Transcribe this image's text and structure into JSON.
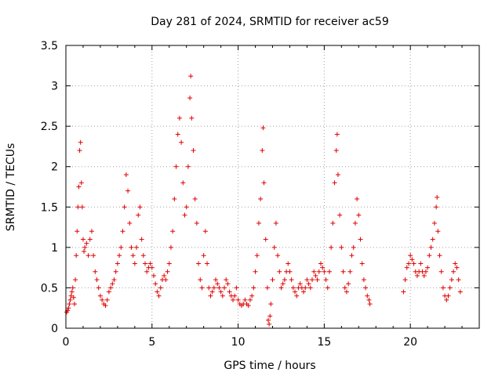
{
  "chart_data": {
    "type": "scatter",
    "title": "Day 281 of 2024, SRMTID for receiver ac59",
    "xlabel": "GPS time / hours",
    "ylabel": "SRMTID / TECUs",
    "xlim": [
      0,
      24
    ],
    "ylim": [
      0,
      3.5
    ],
    "x_ticks": [
      0,
      5,
      10,
      15,
      20
    ],
    "y_ticks": [
      0,
      0.5,
      1,
      1.5,
      2,
      2.5,
      3,
      3.5
    ],
    "x_tick_labels": [
      "0",
      "5",
      "10",
      "15",
      "20"
    ],
    "y_tick_labels": [
      "0",
      "0.5",
      "1",
      "1.5",
      "2",
      "2.5",
      "3",
      "3.5"
    ],
    "grid": true,
    "marker": "+",
    "series": [
      {
        "name": "SRMTID",
        "color": "#e00000",
        "points": [
          [
            0.05,
            0.2
          ],
          [
            0.1,
            0.22
          ],
          [
            0.15,
            0.25
          ],
          [
            0.2,
            0.3
          ],
          [
            0.25,
            0.35
          ],
          [
            0.3,
            0.4
          ],
          [
            0.35,
            0.45
          ],
          [
            0.4,
            0.5
          ],
          [
            0.45,
            0.38
          ],
          [
            0.5,
            0.3
          ],
          [
            0.55,
            0.6
          ],
          [
            0.6,
            0.9
          ],
          [
            0.65,
            1.2
          ],
          [
            0.7,
            1.5
          ],
          [
            0.75,
            1.75
          ],
          [
            0.8,
            2.2
          ],
          [
            0.85,
            2.3
          ],
          [
            0.9,
            1.8
          ],
          [
            0.95,
            1.5
          ],
          [
            1.0,
            1.1
          ],
          [
            1.05,
            0.95
          ],
          [
            1.1,
            1.0
          ],
          [
            1.2,
            1.05
          ],
          [
            1.3,
            0.9
          ],
          [
            1.4,
            1.1
          ],
          [
            1.5,
            1.2
          ],
          [
            1.6,
            0.9
          ],
          [
            1.7,
            0.7
          ],
          [
            1.8,
            0.6
          ],
          [
            1.9,
            0.5
          ],
          [
            2.0,
            0.4
          ],
          [
            2.1,
            0.35
          ],
          [
            2.2,
            0.3
          ],
          [
            2.3,
            0.28
          ],
          [
            2.4,
            0.35
          ],
          [
            2.5,
            0.45
          ],
          [
            2.6,
            0.5
          ],
          [
            2.7,
            0.55
          ],
          [
            2.8,
            0.6
          ],
          [
            2.9,
            0.7
          ],
          [
            3.0,
            0.8
          ],
          [
            3.1,
            0.9
          ],
          [
            3.2,
            1.0
          ],
          [
            3.3,
            1.2
          ],
          [
            3.4,
            1.5
          ],
          [
            3.5,
            1.9
          ],
          [
            3.6,
            1.7
          ],
          [
            3.7,
            1.3
          ],
          [
            3.8,
            1.0
          ],
          [
            3.9,
            0.9
          ],
          [
            4.0,
            0.8
          ],
          [
            4.1,
            1.0
          ],
          [
            4.2,
            1.4
          ],
          [
            4.3,
            1.5
          ],
          [
            4.4,
            1.1
          ],
          [
            4.5,
            0.9
          ],
          [
            4.6,
            0.8
          ],
          [
            4.7,
            0.7
          ],
          [
            4.8,
            0.75
          ],
          [
            4.9,
            0.8
          ],
          [
            5.0,
            0.75
          ],
          [
            5.1,
            0.65
          ],
          [
            5.2,
            0.55
          ],
          [
            5.3,
            0.45
          ],
          [
            5.4,
            0.4
          ],
          [
            5.5,
            0.5
          ],
          [
            5.6,
            0.6
          ],
          [
            5.7,
            0.65
          ],
          [
            5.8,
            0.6
          ],
          [
            5.9,
            0.7
          ],
          [
            6.0,
            0.8
          ],
          [
            6.1,
            1.0
          ],
          [
            6.2,
            1.2
          ],
          [
            6.3,
            1.6
          ],
          [
            6.4,
            2.0
          ],
          [
            6.5,
            2.4
          ],
          [
            6.6,
            2.6
          ],
          [
            6.7,
            2.3
          ],
          [
            6.8,
            1.8
          ],
          [
            6.9,
            1.4
          ],
          [
            7.0,
            1.5
          ],
          [
            7.1,
            2.0
          ],
          [
            7.2,
            2.85
          ],
          [
            7.25,
            3.12
          ],
          [
            7.3,
            2.6
          ],
          [
            7.4,
            2.2
          ],
          [
            7.5,
            1.6
          ],
          [
            7.6,
            1.3
          ],
          [
            7.7,
            0.8
          ],
          [
            7.8,
            0.6
          ],
          [
            7.9,
            0.5
          ],
          [
            8.0,
            0.9
          ],
          [
            8.1,
            1.2
          ],
          [
            8.2,
            0.8
          ],
          [
            8.3,
            0.5
          ],
          [
            8.4,
            0.4
          ],
          [
            8.5,
            0.45
          ],
          [
            8.6,
            0.5
          ],
          [
            8.7,
            0.6
          ],
          [
            8.8,
            0.55
          ],
          [
            8.9,
            0.5
          ],
          [
            9.0,
            0.45
          ],
          [
            9.1,
            0.4
          ],
          [
            9.2,
            0.5
          ],
          [
            9.3,
            0.6
          ],
          [
            9.4,
            0.55
          ],
          [
            9.5,
            0.45
          ],
          [
            9.6,
            0.4
          ],
          [
            9.7,
            0.35
          ],
          [
            9.8,
            0.4
          ],
          [
            9.9,
            0.5
          ],
          [
            10.0,
            0.35
          ],
          [
            10.1,
            0.3
          ],
          [
            10.2,
            0.28
          ],
          [
            10.3,
            0.3
          ],
          [
            10.4,
            0.35
          ],
          [
            10.5,
            0.3
          ],
          [
            10.6,
            0.28
          ],
          [
            10.7,
            0.35
          ],
          [
            10.8,
            0.4
          ],
          [
            10.9,
            0.5
          ],
          [
            11.0,
            0.7
          ],
          [
            11.1,
            0.9
          ],
          [
            11.2,
            1.3
          ],
          [
            11.3,
            1.6
          ],
          [
            11.4,
            2.2
          ],
          [
            11.45,
            2.48
          ],
          [
            11.5,
            1.8
          ],
          [
            11.6,
            1.1
          ],
          [
            11.7,
            0.5
          ],
          [
            11.75,
            0.1
          ],
          [
            11.8,
            0.05
          ],
          [
            11.85,
            0.15
          ],
          [
            11.9,
            0.3
          ],
          [
            12.0,
            0.6
          ],
          [
            12.1,
            1.0
          ],
          [
            12.2,
            1.3
          ],
          [
            12.3,
            0.9
          ],
          [
            12.4,
            0.7
          ],
          [
            12.5,
            0.5
          ],
          [
            12.6,
            0.55
          ],
          [
            12.7,
            0.6
          ],
          [
            12.8,
            0.7
          ],
          [
            12.9,
            0.8
          ],
          [
            13.0,
            0.7
          ],
          [
            13.1,
            0.6
          ],
          [
            13.2,
            0.5
          ],
          [
            13.3,
            0.45
          ],
          [
            13.4,
            0.4
          ],
          [
            13.5,
            0.5
          ],
          [
            13.6,
            0.55
          ],
          [
            13.7,
            0.5
          ],
          [
            13.8,
            0.45
          ],
          [
            13.9,
            0.5
          ],
          [
            14.0,
            0.6
          ],
          [
            14.1,
            0.55
          ],
          [
            14.2,
            0.5
          ],
          [
            14.3,
            0.6
          ],
          [
            14.4,
            0.7
          ],
          [
            14.5,
            0.65
          ],
          [
            14.6,
            0.6
          ],
          [
            14.7,
            0.7
          ],
          [
            14.8,
            0.8
          ],
          [
            14.9,
            0.75
          ],
          [
            15.0,
            0.7
          ],
          [
            15.1,
            0.6
          ],
          [
            15.2,
            0.5
          ],
          [
            15.3,
            0.7
          ],
          [
            15.4,
            1.0
          ],
          [
            15.5,
            1.3
          ],
          [
            15.6,
            1.8
          ],
          [
            15.7,
            2.2
          ],
          [
            15.75,
            2.4
          ],
          [
            15.8,
            1.9
          ],
          [
            15.9,
            1.4
          ],
          [
            16.0,
            1.0
          ],
          [
            16.1,
            0.7
          ],
          [
            16.2,
            0.5
          ],
          [
            16.3,
            0.45
          ],
          [
            16.4,
            0.55
          ],
          [
            16.5,
            0.7
          ],
          [
            16.6,
            0.9
          ],
          [
            16.7,
            1.0
          ],
          [
            16.8,
            1.3
          ],
          [
            16.9,
            1.6
          ],
          [
            17.0,
            1.4
          ],
          [
            17.1,
            1.1
          ],
          [
            17.2,
            0.8
          ],
          [
            17.3,
            0.6
          ],
          [
            17.4,
            0.5
          ],
          [
            17.5,
            0.4
          ],
          [
            17.6,
            0.35
          ],
          [
            17.65,
            0.3
          ],
          [
            19.6,
            0.45
          ],
          [
            19.7,
            0.6
          ],
          [
            19.8,
            0.75
          ],
          [
            19.9,
            0.8
          ],
          [
            20.0,
            0.9
          ],
          [
            20.1,
            0.85
          ],
          [
            20.2,
            0.8
          ],
          [
            20.3,
            0.7
          ],
          [
            20.4,
            0.65
          ],
          [
            20.5,
            0.7
          ],
          [
            20.6,
            0.8
          ],
          [
            20.7,
            0.7
          ],
          [
            20.8,
            0.65
          ],
          [
            20.9,
            0.7
          ],
          [
            21.0,
            0.75
          ],
          [
            21.1,
            0.9
          ],
          [
            21.2,
            1.0
          ],
          [
            21.3,
            1.1
          ],
          [
            21.4,
            1.3
          ],
          [
            21.5,
            1.5
          ],
          [
            21.55,
            1.62
          ],
          [
            21.6,
            1.2
          ],
          [
            21.7,
            0.9
          ],
          [
            21.8,
            0.7
          ],
          [
            21.9,
            0.5
          ],
          [
            22.0,
            0.4
          ],
          [
            22.1,
            0.35
          ],
          [
            22.2,
            0.4
          ],
          [
            22.3,
            0.5
          ],
          [
            22.4,
            0.6
          ],
          [
            22.5,
            0.7
          ],
          [
            22.6,
            0.8
          ],
          [
            22.7,
            0.75
          ],
          [
            22.8,
            0.6
          ],
          [
            22.9,
            0.45
          ]
        ]
      }
    ]
  }
}
